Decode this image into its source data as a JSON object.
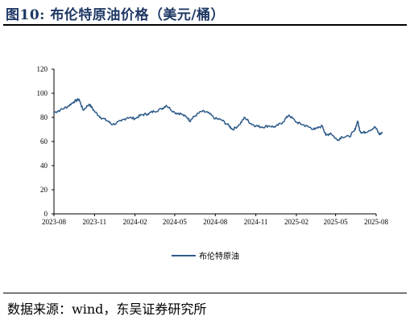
{
  "header": {
    "title": "图10:  布伦特原油价格（美元/桶）"
  },
  "footer": {
    "source_label": "数据来源：",
    "source_text": "wind，东吴证券研究所"
  },
  "colors": {
    "line": "#2e5b8a",
    "title": "#1f3864",
    "axis": "#000000"
  },
  "chart_data": {
    "type": "line",
    "title": "",
    "xlabel": "",
    "ylabel": "",
    "ylim": [
      0,
      120
    ],
    "yticks": [
      0,
      20,
      40,
      60,
      80,
      100,
      120
    ],
    "xticks": [
      "2023-08",
      "2023-11",
      "2024-02",
      "2024-05",
      "2024-08",
      "2024-11",
      "2025-02",
      "2025-05",
      "2025-08"
    ],
    "legend": "bottom-center",
    "grid": false,
    "series": [
      {
        "name": "布伦特原油",
        "x": [
          "2023-08-01",
          "2023-08-15",
          "2023-09-01",
          "2023-09-15",
          "2023-09-27",
          "2023-10-06",
          "2023-10-20",
          "2023-11-01",
          "2023-11-15",
          "2023-12-01",
          "2023-12-12",
          "2024-01-01",
          "2024-01-15",
          "2024-02-01",
          "2024-02-15",
          "2024-03-01",
          "2024-03-15",
          "2024-04-01",
          "2024-04-12",
          "2024-05-01",
          "2024-05-15",
          "2024-06-01",
          "2024-06-04",
          "2024-06-15",
          "2024-07-01",
          "2024-07-15",
          "2024-08-01",
          "2024-08-15",
          "2024-09-01",
          "2024-09-10",
          "2024-09-25",
          "2024-10-07",
          "2024-10-20",
          "2024-11-01",
          "2024-11-15",
          "2024-12-01",
          "2024-12-15",
          "2025-01-01",
          "2025-01-15",
          "2025-02-01",
          "2025-02-15",
          "2025-03-01",
          "2025-03-15",
          "2025-04-01",
          "2025-04-09",
          "2025-04-20",
          "2025-05-05",
          "2025-05-15",
          "2025-06-01",
          "2025-06-13",
          "2025-06-20",
          "2025-06-25",
          "2025-07-01",
          "2025-07-15",
          "2025-07-30",
          "2025-08-08",
          "2025-08-15"
        ],
        "values": [
          84,
          86,
          89,
          93,
          95,
          86,
          91,
          85,
          80,
          77,
          74,
          77,
          80,
          79,
          82,
          83,
          85,
          87,
          90,
          84,
          83,
          79,
          77,
          81,
          85,
          84,
          79,
          78,
          73,
          70,
          74,
          80,
          75,
          73,
          72,
          73,
          72,
          76,
          82,
          76,
          74,
          72,
          70,
          73,
          65,
          67,
          61,
          64,
          64,
          69,
          77,
          69,
          67,
          69,
          72,
          66,
          67
        ]
      }
    ]
  }
}
